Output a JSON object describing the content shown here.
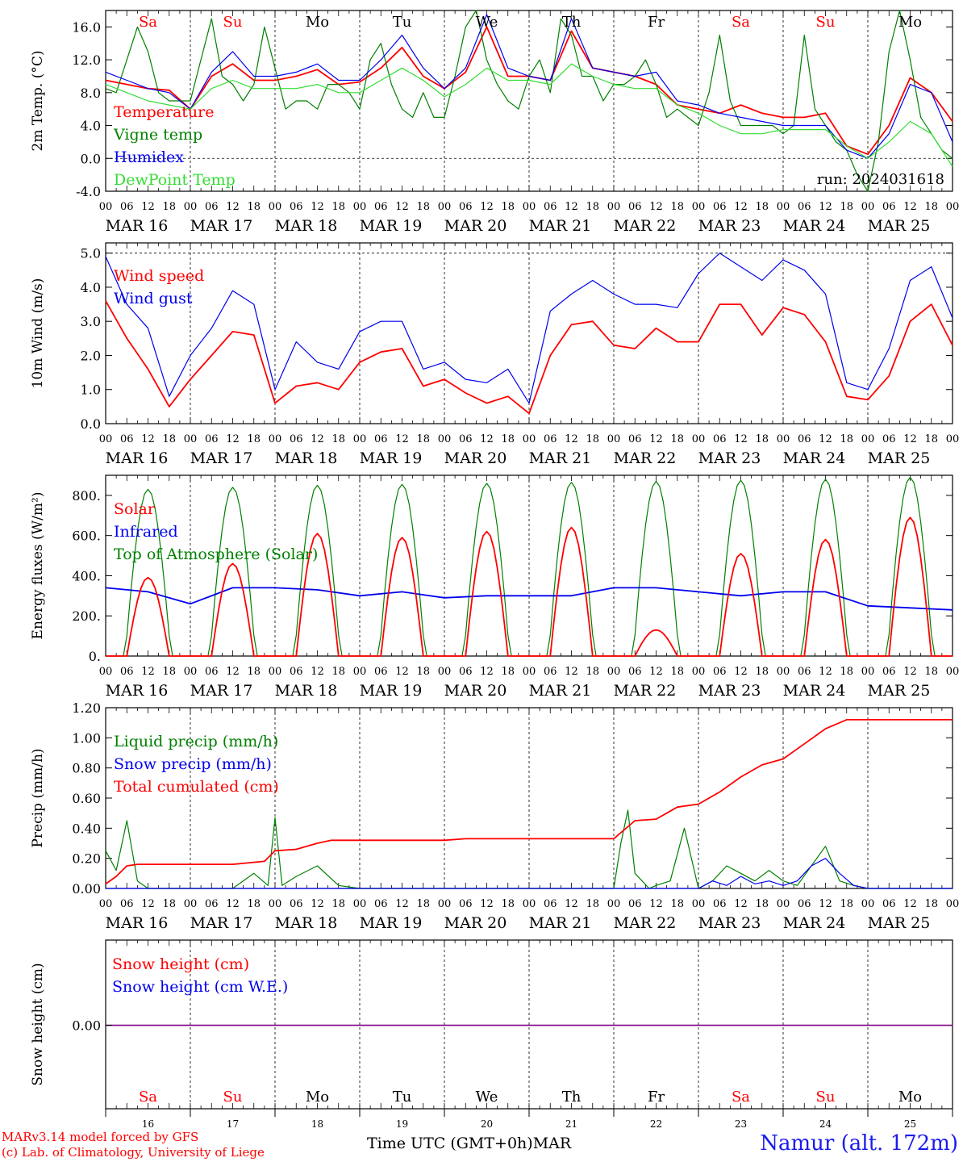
{
  "colors": {
    "red": "#ff0000",
    "dark_green": "#008000",
    "blue": "#0000ee",
    "light_green": "#33dd33",
    "purple": "#800080",
    "weekend": "#ff0000",
    "weekday": "#000000"
  },
  "days": {
    "weekday_labels": [
      "Sa",
      "Su",
      "Mo",
      "Tu",
      "We",
      "Th",
      "Fr",
      "Sa",
      "Su",
      "Mo"
    ],
    "weekend": [
      true,
      true,
      false,
      false,
      false,
      false,
      false,
      true,
      true,
      false
    ],
    "date_labels": [
      "MAR 16",
      "MAR 17",
      "MAR 18",
      "MAR 19",
      "MAR 20",
      "MAR 21",
      "MAR 22",
      "MAR 23",
      "MAR 24",
      "MAR 25"
    ],
    "day_numbers": [
      "16",
      "17",
      "18",
      "19",
      "20",
      "21",
      "22",
      "23",
      "24",
      "25"
    ],
    "hour_ticks": [
      "00",
      "06",
      "12",
      "18"
    ],
    "end_tick": "00"
  },
  "footer": {
    "credit_line1": "MARv3.14 model forced by GFS",
    "credit_line2": "(c) Lab. of Climatology, University of Liege",
    "station": "Namur (alt. 172m)",
    "time_axis_label": "Time UTC (GMT+0h)",
    "month": "MAR"
  },
  "chart_data": [
    {
      "type": "line",
      "ylabel": "2m Temp. (°C)",
      "ylim": [
        -4.0,
        18.0
      ],
      "yticks": [
        "-4.0",
        "0.0",
        "4.0",
        "8.0",
        "12.0",
        "16.0"
      ],
      "ytick_values": [
        -4,
        0,
        4,
        8,
        12,
        16
      ],
      "annotation": "run: 2024031618",
      "reference_line": 0,
      "x_hours_from": "2024-03-16 00 UTC",
      "series": [
        {
          "name": "Temperature",
          "color": "#ff0000",
          "x": [
            0,
            6,
            12,
            18,
            24,
            30,
            36,
            42,
            48,
            54,
            60,
            66,
            72,
            78,
            84,
            90,
            96,
            102,
            108,
            114,
            120,
            126,
            132,
            138,
            144,
            150,
            156,
            162,
            168,
            174,
            180,
            186,
            192,
            198,
            204,
            210,
            216,
            222,
            228,
            234,
            240
          ],
          "values": [
            9.5,
            9,
            8.5,
            8.3,
            6,
            10,
            11.5,
            9.5,
            9.5,
            10,
            10.8,
            9,
            9.3,
            11,
            13.5,
            10,
            8.5,
            10.5,
            16,
            10,
            10,
            9.5,
            15.5,
            11,
            10.5,
            10,
            9,
            6.5,
            6,
            5.5,
            6.5,
            5.5,
            5,
            5,
            5.5,
            1.5,
            0.5,
            4,
            9.8,
            8,
            4.5
          ]
        },
        {
          "name": "Vigne temp",
          "color": "#008000",
          "x": [
            0,
            3,
            6,
            9,
            12,
            15,
            18,
            24,
            27,
            30,
            33,
            36,
            39,
            42,
            45,
            48,
            51,
            54,
            57,
            60,
            63,
            66,
            69,
            72,
            75,
            78,
            81,
            84,
            87,
            90,
            93,
            96,
            99,
            102,
            105,
            108,
            111,
            114,
            117,
            120,
            123,
            126,
            129,
            132,
            135,
            138,
            141,
            144,
            147,
            150,
            153,
            156,
            159,
            162,
            165,
            168,
            171,
            174,
            177,
            180,
            183,
            186,
            189,
            192,
            195,
            198,
            201,
            204,
            207,
            210,
            213,
            216,
            219,
            222,
            225,
            228,
            231,
            234,
            237,
            240
          ],
          "values": [
            8.5,
            8,
            12,
            16,
            13,
            8,
            7,
            7,
            12,
            17,
            10,
            9,
            7,
            9,
            16,
            11,
            6,
            7,
            7,
            6,
            9,
            9,
            8,
            6,
            12,
            14,
            9,
            6,
            5,
            8,
            5,
            5,
            10,
            16,
            18,
            12,
            9,
            7,
            6,
            10,
            12,
            8,
            17,
            15,
            10,
            10,
            7,
            9,
            9,
            10,
            12,
            9,
            5,
            6,
            5,
            4,
            8,
            15,
            7,
            4,
            4,
            4,
            4,
            3,
            4,
            15,
            6,
            4,
            2,
            1,
            -2,
            -4,
            2,
            13,
            18,
            12,
            5,
            3,
            1,
            0
          ]
        },
        {
          "name": "Humidex",
          "color": "#0000ee",
          "x": [
            0,
            6,
            12,
            18,
            24,
            30,
            36,
            42,
            48,
            54,
            60,
            66,
            72,
            78,
            84,
            90,
            96,
            102,
            108,
            114,
            120,
            126,
            132,
            138,
            144,
            150,
            156,
            162,
            168,
            174,
            180,
            186,
            192,
            198,
            204,
            210,
            216,
            222,
            228,
            234,
            240
          ],
          "values": [
            10.5,
            9.5,
            8.5,
            8,
            6,
            10.5,
            13,
            10,
            10,
            10.5,
            11.5,
            9.5,
            9.5,
            12,
            15,
            11,
            8.5,
            11,
            17.5,
            11,
            10,
            9.5,
            17,
            11,
            10.5,
            10,
            10.5,
            7,
            6.5,
            5.5,
            5,
            4.5,
            4,
            4,
            4,
            1,
            0,
            3,
            9,
            8,
            2
          ]
        },
        {
          "name": "DewPoint Temp",
          "color": "#33dd33",
          "x": [
            0,
            6,
            12,
            18,
            24,
            30,
            36,
            42,
            48,
            54,
            60,
            66,
            72,
            78,
            84,
            90,
            96,
            102,
            108,
            114,
            120,
            126,
            132,
            138,
            144,
            150,
            156,
            162,
            168,
            174,
            180,
            186,
            192,
            198,
            204,
            210,
            216,
            222,
            228,
            234,
            240
          ],
          "values": [
            9,
            8,
            7,
            6.5,
            6,
            8.5,
            9.5,
            8.5,
            8.5,
            8.5,
            9,
            8,
            8,
            9.5,
            11,
            9.5,
            7.5,
            9,
            11,
            9.5,
            9.5,
            9,
            11.5,
            10,
            9,
            8.5,
            8.5,
            6.5,
            5.5,
            4,
            3,
            3,
            3.5,
            3.5,
            3.5,
            1.5,
            0,
            2,
            4.5,
            3,
            -1
          ]
        }
      ]
    },
    {
      "type": "line",
      "ylabel": "10m Wind (m/s)",
      "ylim": [
        0,
        5.3
      ],
      "yticks": [
        "0.0",
        "1.0",
        "2.0",
        "3.0",
        "4.0",
        "5.0"
      ],
      "ytick_values": [
        0,
        1,
        2,
        3,
        4,
        5
      ],
      "reference_line": 5.0,
      "series": [
        {
          "name": "Wind speed",
          "color": "#ff0000",
          "x": [
            0,
            6,
            12,
            18,
            24,
            30,
            36,
            42,
            48,
            54,
            60,
            66,
            72,
            78,
            84,
            90,
            96,
            102,
            108,
            114,
            120,
            126,
            132,
            138,
            144,
            150,
            156,
            162,
            168,
            174,
            180,
            186,
            192,
            198,
            204,
            210,
            216,
            222,
            228,
            234,
            240
          ],
          "values": [
            3.6,
            2.5,
            1.6,
            0.5,
            1.3,
            2,
            2.7,
            2.6,
            0.6,
            1.1,
            1.2,
            1.0,
            1.8,
            2.1,
            2.2,
            1.1,
            1.3,
            0.9,
            0.6,
            0.8,
            0.3,
            2,
            2.9,
            3,
            2.3,
            2.2,
            2.8,
            2.4,
            2.4,
            3.5,
            3.5,
            2.6,
            3.4,
            3.2,
            2.4,
            0.8,
            0.7,
            1.4,
            3.0,
            3.5,
            2.3
          ]
        },
        {
          "name": "Wind gust",
          "color": "#0000ee",
          "x": [
            0,
            6,
            12,
            18,
            24,
            30,
            36,
            42,
            48,
            54,
            60,
            66,
            72,
            78,
            84,
            90,
            96,
            102,
            108,
            114,
            120,
            126,
            132,
            138,
            144,
            150,
            156,
            162,
            168,
            174,
            180,
            186,
            192,
            198,
            204,
            210,
            216,
            222,
            228,
            234,
            240
          ],
          "values": [
            4.9,
            3.5,
            2.8,
            0.8,
            2.0,
            2.8,
            3.9,
            3.5,
            1.0,
            2.4,
            1.8,
            1.6,
            2.7,
            3.0,
            3.0,
            1.6,
            1.8,
            1.3,
            1.2,
            1.6,
            0.6,
            3.3,
            3.8,
            4.2,
            3.8,
            3.5,
            3.5,
            3.4,
            4.4,
            5.0,
            4.6,
            4.2,
            4.8,
            4.5,
            3.8,
            1.2,
            1.0,
            2.2,
            4.2,
            4.6,
            3.1
          ]
        }
      ]
    },
    {
      "type": "line",
      "ylabel": "Energy fluxes (W/m²)",
      "ylim": [
        0,
        900
      ],
      "yticks": [
        "0.",
        "200.",
        "400.",
        "600.",
        "800."
      ],
      "ytick_values": [
        0,
        200,
        400,
        600,
        800
      ],
      "series": [
        {
          "name": "Solar",
          "color": "#ff0000",
          "peaks": [
            390,
            460,
            610,
            590,
            620,
            640,
            130,
            510,
            580,
            690
          ],
          "peak_hour_of_day": 12,
          "window_hours": [
            6,
            18
          ]
        },
        {
          "name": "Infrared",
          "color": "#0000ee",
          "x": [
            0,
            12,
            24,
            36,
            48,
            60,
            72,
            84,
            96,
            108,
            120,
            132,
            144,
            156,
            168,
            180,
            192,
            204,
            216,
            228,
            240
          ],
          "values": [
            340,
            320,
            260,
            340,
            340,
            330,
            300,
            320,
            290,
            300,
            300,
            300,
            340,
            340,
            320,
            300,
            320,
            320,
            250,
            240,
            230
          ]
        },
        {
          "name": "Top of Atmosphere (Solar)",
          "color": "#008000",
          "peaks": [
            830,
            840,
            850,
            855,
            860,
            865,
            870,
            875,
            880,
            890
          ],
          "peak_hour_of_day": 12,
          "window_hours": [
            5.5,
            18.5
          ]
        }
      ]
    },
    {
      "type": "line",
      "ylabel": "Precip (mm/h)",
      "ylim": [
        0,
        1.2
      ],
      "yticks": [
        "0.00",
        "0.20",
        "0.40",
        "0.60",
        "0.80",
        "1.00",
        "1.20"
      ],
      "ytick_values": [
        0,
        0.2,
        0.4,
        0.6,
        0.8,
        1.0,
        1.2
      ],
      "series": [
        {
          "name": "Liquid precip (mm/h)",
          "color": "#008000",
          "x": [
            0,
            3,
            6,
            9,
            12,
            36,
            42,
            46,
            48,
            50,
            54,
            60,
            66,
            72,
            144,
            146,
            148,
            150,
            154,
            156,
            160,
            164,
            168,
            172,
            176,
            180,
            184,
            188,
            192,
            196,
            200,
            204,
            208,
            212,
            216,
            240
          ],
          "values": [
            0.25,
            0.12,
            0.45,
            0.05,
            0,
            0,
            0.1,
            0.02,
            0.47,
            0.02,
            0.08,
            0.15,
            0.02,
            0,
            0,
            0.3,
            0.52,
            0.1,
            0,
            0.02,
            0.05,
            0.4,
            0,
            0.05,
            0.15,
            0.1,
            0.05,
            0.12,
            0.05,
            0.02,
            0.15,
            0.28,
            0.05,
            0.02,
            0,
            0
          ]
        },
        {
          "name": "Snow precip (mm/h)",
          "color": "#0000ee",
          "x": [
            0,
            168,
            172,
            176,
            180,
            184,
            188,
            192,
            196,
            200,
            204,
            208,
            212,
            216,
            240
          ],
          "values": [
            0,
            0,
            0.05,
            0.02,
            0.08,
            0.03,
            0.05,
            0.02,
            0.05,
            0.15,
            0.2,
            0.1,
            0.02,
            0,
            0
          ]
        },
        {
          "name": "Total cumulated (cm)",
          "color": "#ff0000",
          "x": [
            0,
            3,
            6,
            9,
            12,
            36,
            45,
            48,
            54,
            60,
            64,
            72,
            96,
            102,
            120,
            144,
            150,
            156,
            162,
            168,
            174,
            180,
            186,
            192,
            198,
            204,
            210,
            216,
            240
          ],
          "values": [
            0.03,
            0.08,
            0.15,
            0.16,
            0.16,
            0.16,
            0.18,
            0.25,
            0.26,
            0.3,
            0.32,
            0.32,
            0.32,
            0.33,
            0.33,
            0.33,
            0.45,
            0.46,
            0.54,
            0.56,
            0.64,
            0.74,
            0.82,
            0.86,
            0.96,
            1.06,
            1.12,
            1.12,
            1.12
          ]
        }
      ]
    },
    {
      "type": "line",
      "ylabel": "Snow height (cm)",
      "yticks": [
        "0.00"
      ],
      "series": [
        {
          "name": "Snow height (cm)",
          "color": "#ff0000",
          "x": [
            0,
            240
          ],
          "values": [
            0,
            0
          ]
        },
        {
          "name": "Snow height (cm W.E.)",
          "color": "#0000ee",
          "x": [
            0,
            240
          ],
          "values": [
            0,
            0
          ]
        }
      ]
    }
  ]
}
